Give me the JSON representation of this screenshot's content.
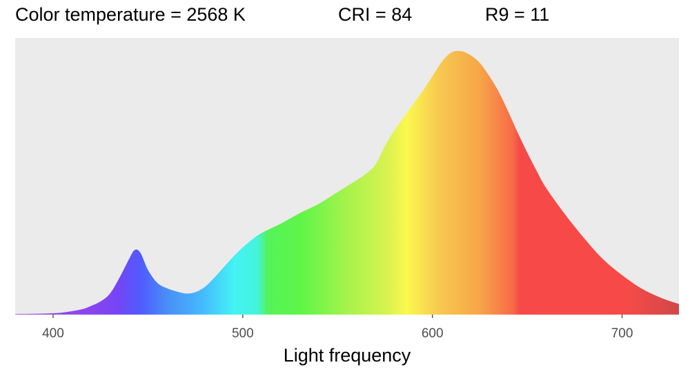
{
  "header": {
    "color_temperature": "Color temperature = 2568 K",
    "cri": "CRI = 84",
    "r9": "R9 = 11"
  },
  "chart_data": {
    "type": "area",
    "title": "",
    "xlabel": "Light frequency",
    "ylabel": "",
    "xlim": [
      380,
      730
    ],
    "ylim": [
      0,
      1.05
    ],
    "x_ticks": [
      400,
      500,
      600,
      700
    ],
    "grid": false,
    "panel_background": "#ebebeb",
    "fill": "wavelength spectrum gradient",
    "series": [
      {
        "x": [
          380,
          395,
          405,
          415,
          420,
          425,
          430,
          435,
          440,
          443,
          446,
          450,
          455,
          460,
          465,
          470,
          475,
          480,
          485,
          490,
          495,
          500,
          505,
          510,
          520,
          530,
          540,
          550,
          560,
          565,
          570,
          575,
          580,
          585,
          590,
          595,
          600,
          605,
          610,
          615,
          620,
          625,
          630,
          635,
          640,
          645,
          650,
          655,
          660,
          670,
          680,
          690,
          700,
          710,
          720,
          730
        ],
        "values": [
          0.002,
          0.004,
          0.008,
          0.02,
          0.033,
          0.05,
          0.08,
          0.14,
          0.21,
          0.245,
          0.235,
          0.17,
          0.12,
          0.1,
          0.088,
          0.08,
          0.085,
          0.105,
          0.14,
          0.18,
          0.22,
          0.255,
          0.285,
          0.31,
          0.345,
          0.385,
          0.42,
          0.465,
          0.51,
          0.535,
          0.57,
          0.64,
          0.7,
          0.75,
          0.8,
          0.85,
          0.905,
          0.96,
          0.995,
          1.0,
          0.985,
          0.955,
          0.905,
          0.845,
          0.77,
          0.69,
          0.615,
          0.545,
          0.48,
          0.38,
          0.29,
          0.21,
          0.15,
          0.1,
          0.065,
          0.04
        ]
      }
    ]
  }
}
